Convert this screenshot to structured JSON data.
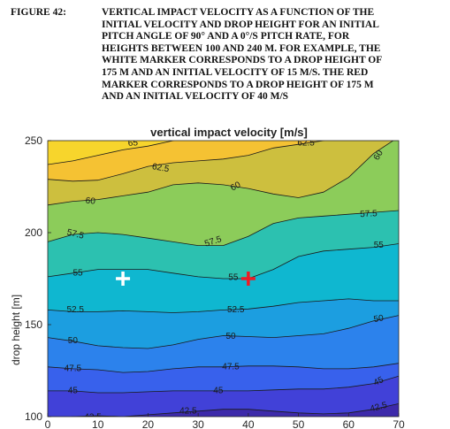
{
  "caption": {
    "label": "FIGURE 42:",
    "lines": [
      "VERTICAL IMPACT VELOCITY AS A FUNCTION OF THE",
      "INITIAL VELOCITY AND DROP HEIGHT FOR AN INITIAL",
      "PITCH ANGLE OF 90° AND A 0°/S PITCH RATE, FOR",
      "HEIGHTS BETWEEN 100 AND 240 M. FOR EXAMPLE, THE",
      "WHITE MARKER CORRESPONDS TO A DROP HEIGHT OF",
      "175 M AND AN INITIAL VELOCITY OF 15 M/S.  THE RED",
      "MARKER CORRESPONDS TO A DROP HEIGHT OF 175 M",
      "AND AN INITIAL VELOCITY OF 40 M/S"
    ]
  },
  "chart_data": {
    "type": "contour",
    "title": "vertical impact velocity [m/s]",
    "xlabel": "",
    "ylabel": "drop height [m]",
    "xlim": [
      0,
      70
    ],
    "ylim": [
      100,
      250
    ],
    "x_ticks": [
      0,
      10,
      20,
      30,
      40,
      50,
      60,
      70
    ],
    "y_ticks": [
      100,
      150,
      200,
      250
    ],
    "colormap": [
      "#3e26a8",
      "#4443e8",
      "#2f6ff0",
      "#2196e0",
      "#14b2c6",
      "#33bea0",
      "#8ccc54",
      "#e1b92f",
      "#fac228",
      "#f9fb0e"
    ],
    "level_fills": [
      {
        "from": 40,
        "to": 42.5,
        "color": "#3d2aaa"
      },
      {
        "from": 42.5,
        "to": 45,
        "color": "#4141d8"
      },
      {
        "from": 45,
        "to": 47.5,
        "color": "#3861ec"
      },
      {
        "from": 47.5,
        "to": 50,
        "color": "#2c82ec"
      },
      {
        "from": 50,
        "to": 52.5,
        "color": "#1c9ee0"
      },
      {
        "from": 52.5,
        "to": 55,
        "color": "#0fb7d0"
      },
      {
        "from": 55,
        "to": 57.5,
        "color": "#2cc1b0"
      },
      {
        "from": 57.5,
        "to": 60,
        "color": "#8ccc5a"
      },
      {
        "from": 60,
        "to": 62.5,
        "color": "#cdbf3e"
      },
      {
        "from": 62.5,
        "to": 65,
        "color": "#f5c233"
      },
      {
        "from": 65,
        "to": 66.5,
        "color": "#f7d52c"
      }
    ],
    "contours": [
      {
        "level": 42.5,
        "x": [
          0,
          5,
          10,
          15,
          20,
          25,
          30,
          35,
          40,
          45,
          50,
          55,
          60,
          65,
          70
        ],
        "y": [
          98,
          100,
          100.5,
          100,
          101,
          102,
          103,
          104,
          104,
          103,
          102,
          101.5,
          102,
          104,
          107
        ]
      },
      {
        "level": 45,
        "x": [
          0,
          5,
          10,
          15,
          20,
          25,
          30,
          35,
          40,
          45,
          50,
          55,
          60,
          65,
          70
        ],
        "y": [
          114,
          114,
          113,
          113,
          113.5,
          114,
          114,
          114,
          114,
          114.5,
          115,
          115,
          116,
          118,
          122
        ]
      },
      {
        "level": 47.5,
        "x": [
          0,
          5,
          10,
          15,
          20,
          25,
          30,
          35,
          40,
          45,
          50,
          55,
          60,
          65,
          70
        ],
        "y": [
          127,
          126,
          125.5,
          124,
          124.5,
          126,
          127,
          127,
          127.5,
          127.5,
          127,
          126,
          126,
          127,
          129
        ]
      },
      {
        "level": 50,
        "x": [
          0,
          5,
          10,
          15,
          20,
          25,
          30,
          35,
          40,
          45,
          50,
          55,
          60,
          65,
          70
        ],
        "y": [
          143,
          141,
          138.5,
          137.5,
          137,
          139,
          142,
          144,
          143.5,
          143,
          144,
          145,
          148,
          152,
          155
        ]
      },
      {
        "level": 52.5,
        "x": [
          0,
          5,
          10,
          15,
          20,
          25,
          30,
          35,
          40,
          45,
          50,
          55,
          60,
          65,
          70
        ],
        "y": [
          158,
          157,
          157,
          157.5,
          157,
          156.5,
          157,
          158,
          158.5,
          160,
          162,
          163,
          164,
          163,
          163
        ]
      },
      {
        "level": 55,
        "x": [
          0,
          5,
          10,
          15,
          20,
          25,
          30,
          35,
          40,
          45,
          50,
          55,
          60,
          65,
          70
        ],
        "y": [
          176,
          178,
          180,
          180,
          180,
          178,
          176,
          175,
          175,
          180,
          187,
          190,
          191,
          192,
          194
        ]
      },
      {
        "level": 57.5,
        "x": [
          0,
          5,
          10,
          15,
          20,
          25,
          30,
          35,
          40,
          45,
          50,
          55,
          60,
          65,
          70
        ],
        "y": [
          195,
          199,
          200,
          199,
          197,
          195,
          193,
          193,
          198,
          205,
          208,
          209,
          210,
          211,
          212
        ]
      },
      {
        "level": 60,
        "x": [
          0,
          5,
          10,
          15,
          20,
          25,
          30,
          35,
          40,
          45,
          50,
          55,
          60,
          65,
          70
        ],
        "y": [
          215,
          217,
          218,
          220,
          222,
          226,
          227,
          226,
          224,
          221,
          219,
          222,
          230,
          243,
          252
        ]
      },
      {
        "level": 62.5,
        "x": [
          0,
          5,
          10,
          15,
          20,
          25,
          30,
          35,
          40,
          45,
          50,
          55,
          60,
          65,
          70
        ],
        "y": [
          229,
          228,
          228.5,
          232,
          236,
          238,
          239,
          240,
          242,
          246,
          248,
          250,
          254,
          258,
          262
        ]
      },
      {
        "level": 65,
        "x": [
          0,
          5,
          10,
          15,
          20,
          25,
          30,
          35,
          40,
          45,
          50,
          55,
          60,
          65,
          70
        ],
        "y": [
          237,
          239,
          242,
          245,
          247,
          250,
          254,
          258,
          262,
          266,
          270,
          274,
          278,
          282,
          286
        ]
      }
    ],
    "contour_labels": [
      {
        "text": "65",
        "x": 17,
        "y": 248.5,
        "rotate": -4
      },
      {
        "text": "62.5",
        "x": 51.5,
        "y": 248.5,
        "rotate": 0
      },
      {
        "text": "62.5",
        "x": 22.5,
        "y": 235,
        "rotate": 10
      },
      {
        "text": "60",
        "x": 66,
        "y": 242,
        "rotate": -60
      },
      {
        "text": "60",
        "x": 37.5,
        "y": 225,
        "rotate": -28
      },
      {
        "text": "60",
        "x": 8.5,
        "y": 217,
        "rotate": 6
      },
      {
        "text": "57.5",
        "x": 64,
        "y": 210,
        "rotate": -3
      },
      {
        "text": "57.5",
        "x": 5.5,
        "y": 199,
        "rotate": 14
      },
      {
        "text": "57.5",
        "x": 33,
        "y": 195,
        "rotate": -18
      },
      {
        "text": "55",
        "x": 66,
        "y": 193,
        "rotate": 0
      },
      {
        "text": "55",
        "x": 6,
        "y": 178,
        "rotate": 0
      },
      {
        "text": "55",
        "x": 37,
        "y": 175.5,
        "rotate": 0
      },
      {
        "text": "52.5",
        "x": 5.5,
        "y": 158,
        "rotate": 0
      },
      {
        "text": "52.5",
        "x": 37.5,
        "y": 158,
        "rotate": 0
      },
      {
        "text": "50",
        "x": 66,
        "y": 153,
        "rotate": -10
      },
      {
        "text": "50",
        "x": 5,
        "y": 141,
        "rotate": 0
      },
      {
        "text": "50",
        "x": 36.5,
        "y": 143.5,
        "rotate": 0
      },
      {
        "text": "47.5",
        "x": 5,
        "y": 126,
        "rotate": 0
      },
      {
        "text": "47.5",
        "x": 36.5,
        "y": 127,
        "rotate": 0
      },
      {
        "text": "45",
        "x": 66,
        "y": 119,
        "rotate": -25
      },
      {
        "text": "45",
        "x": 5,
        "y": 114,
        "rotate": 0
      },
      {
        "text": "45",
        "x": 34,
        "y": 114,
        "rotate": 0
      },
      {
        "text": "42.5",
        "x": 28,
        "y": 103,
        "rotate": 0
      },
      {
        "text": "42.5",
        "x": 66,
        "y": 105,
        "rotate": -15
      },
      {
        "text": "42.5",
        "x": 9,
        "y": 99.5,
        "rotate": 0
      }
    ],
    "markers": [
      {
        "name": "white-marker",
        "x": 15,
        "y": 175,
        "color": "#ffffff"
      },
      {
        "name": "red-marker",
        "x": 40,
        "y": 175,
        "color": "#ee1c24"
      }
    ],
    "grid": false,
    "legend": "none"
  }
}
